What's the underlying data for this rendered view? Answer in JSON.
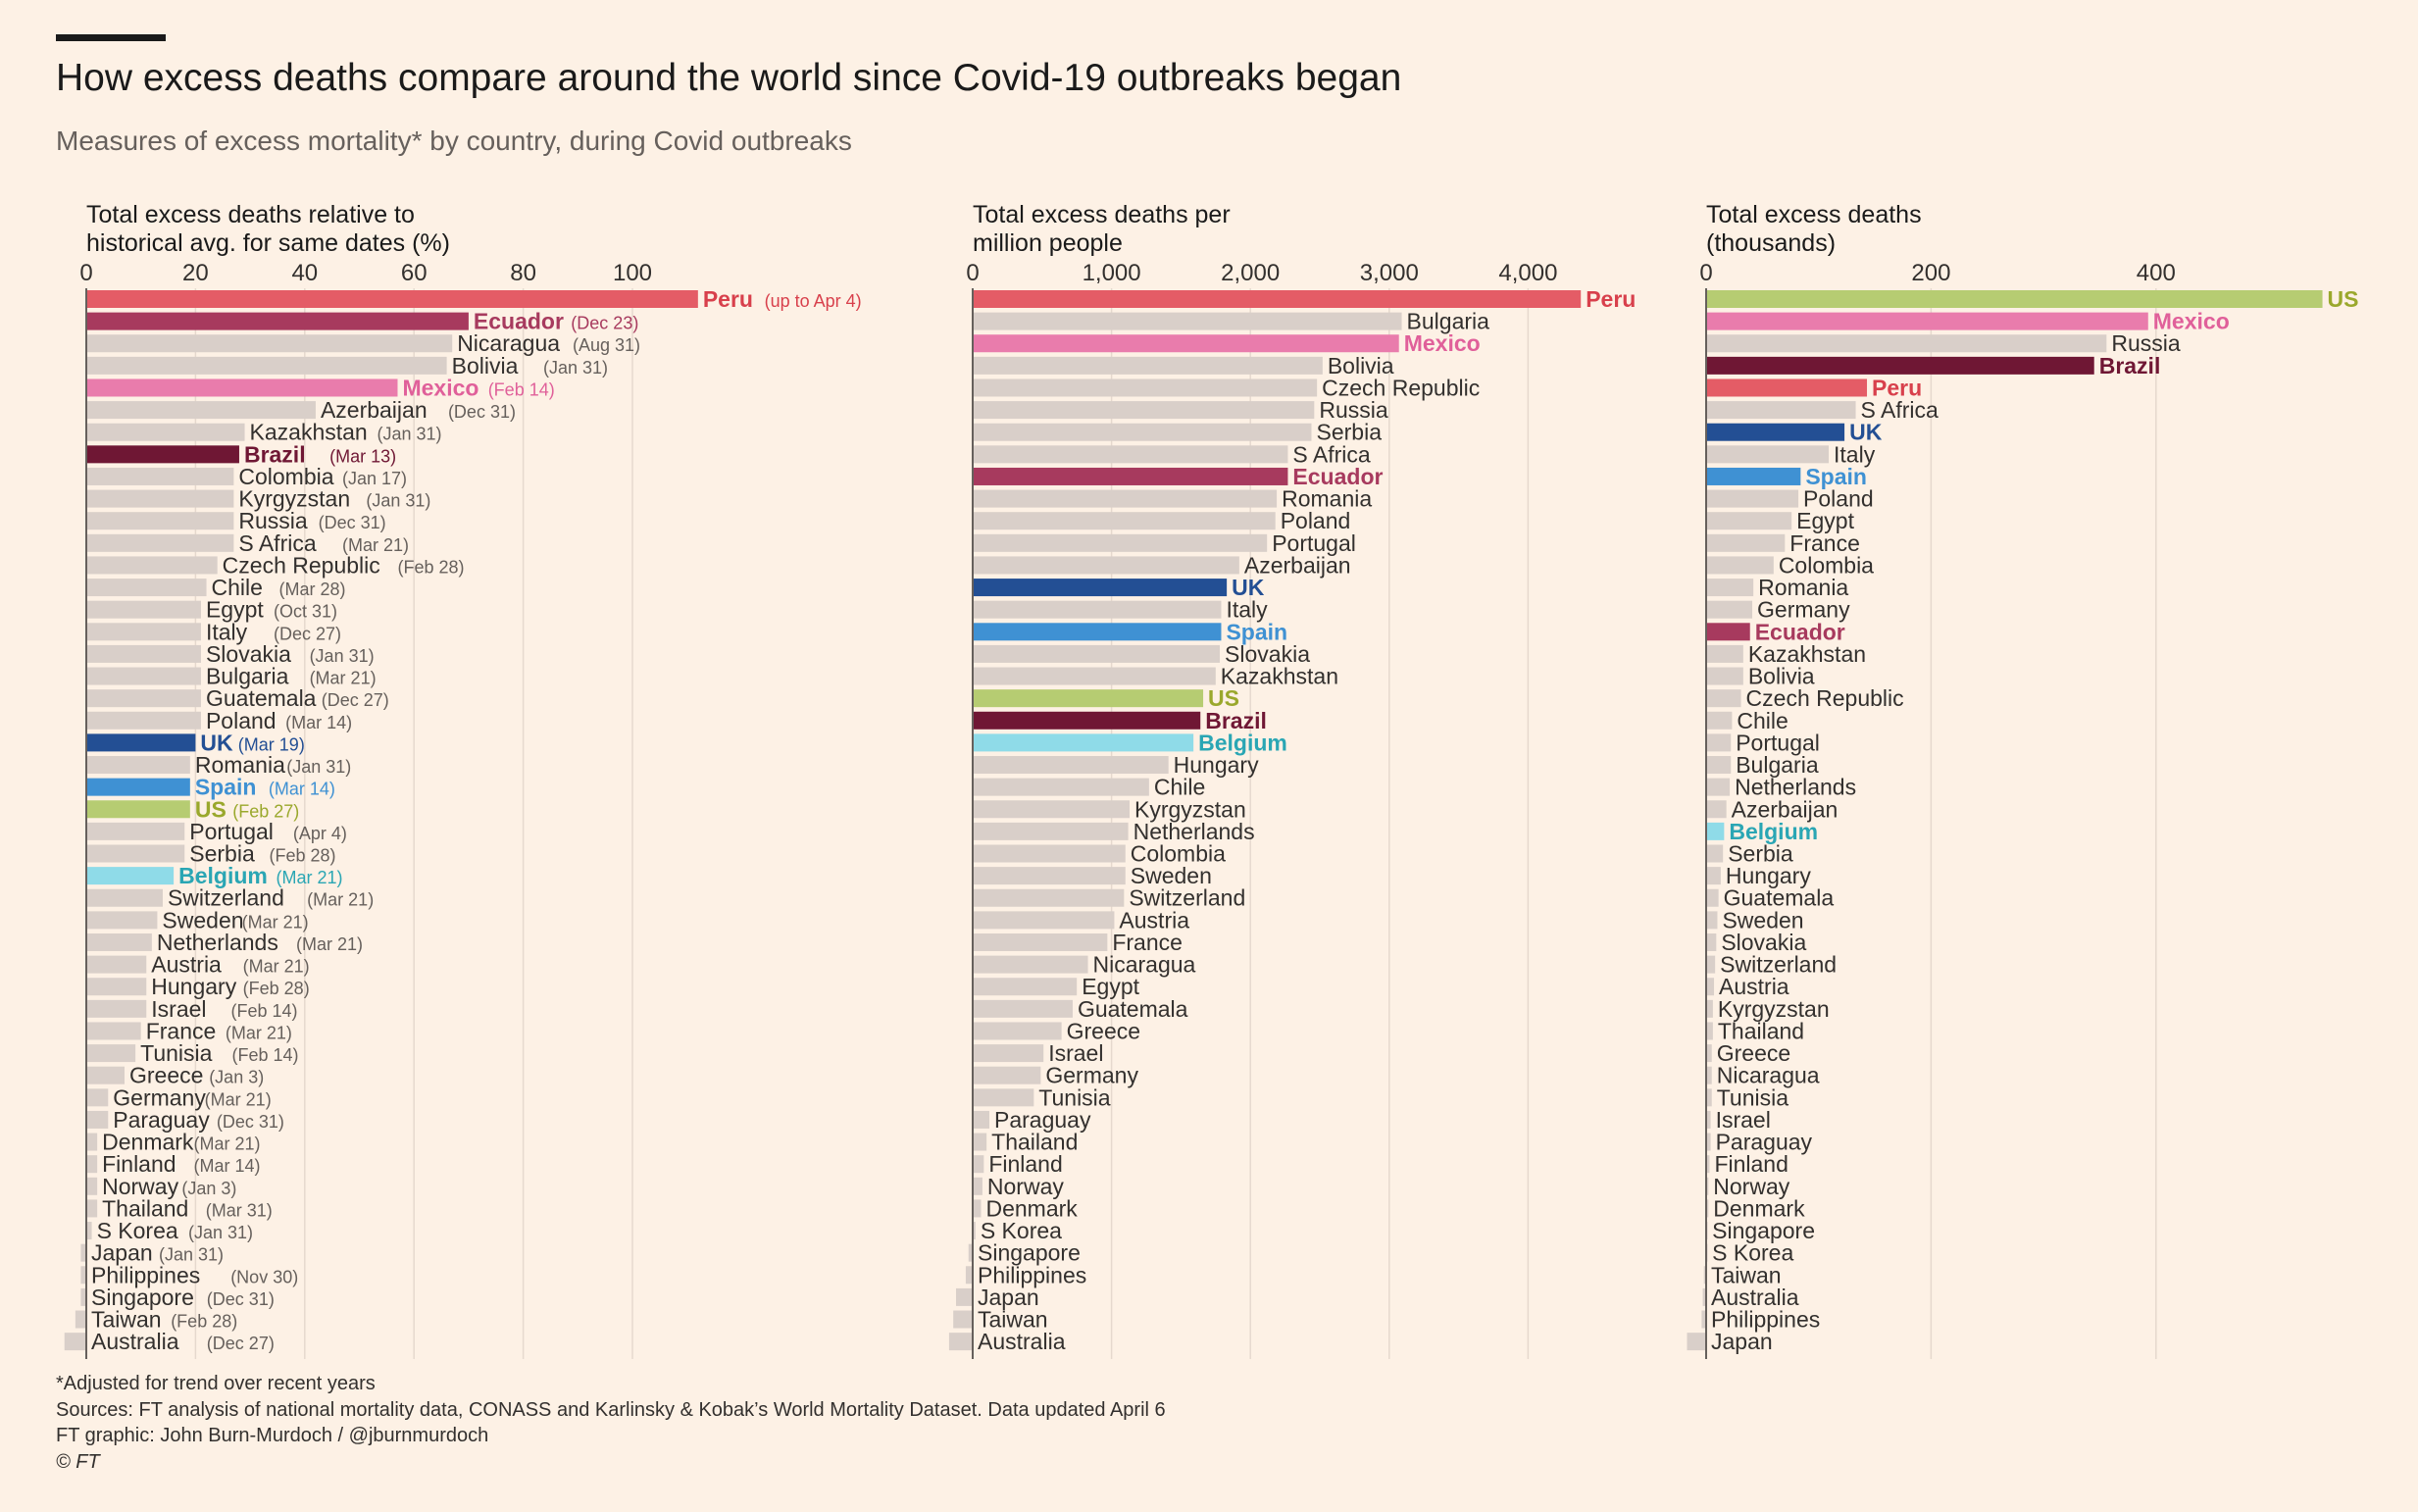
{
  "title": "How excess deaths compare around the world since Covid-19 outbreaks began",
  "subtitle": "Measures of excess mortality* by country, during Covid outbreaks",
  "footnote": "*Adjusted for trend over recent years",
  "sources": "Sources: FT analysis of national mortality data, CONASS and Karlinsky & Kobak’s World Mortality Dataset. Data updated April 6",
  "credit": "FT graphic: John Burn-Murdoch / @jburnmurdoch",
  "copyright": "© FT",
  "colors": {
    "background": "#fdf1e5",
    "neutral_bar": "#d9cfc9",
    "Peru": "#e45c66",
    "Ecuador": "#a73a5e",
    "Mexico": "#e97cac",
    "Brazil": "#6f1734",
    "UK": "#234f94",
    "Spain": "#3f91d3",
    "US": "#b6cc72",
    "Belgium": "#8fdbe8"
  },
  "label_colors": {
    "Peru": "#d8404c",
    "Ecuador": "#a73a5e",
    "Mexico": "#e0609a",
    "Brazil": "#6f1734",
    "UK": "#234f94",
    "Spain": "#3f91d3",
    "US": "#9aa82c",
    "Belgium": "#2aa6b4"
  },
  "chart_data": [
    {
      "type": "bar",
      "orientation": "horizontal",
      "title_lines": [
        "Total excess deaths relative to",
        "historical avg. for same dates (%)"
      ],
      "xlim": [
        0,
        120
      ],
      "ticks": [
        0,
        20,
        40,
        60,
        80,
        100
      ],
      "tick_labels": [
        "0",
        "20",
        "40",
        "60",
        "80",
        "100"
      ],
      "categories": [
        "Peru",
        "Ecuador",
        "Nicaragua",
        "Bolivia",
        "Mexico",
        "Azerbaijan",
        "Kazakhstan",
        "Brazil",
        "Colombia",
        "Kyrgyzstan",
        "Russia",
        "S Africa",
        "Czech Republic",
        "Chile",
        "Egypt",
        "Italy",
        "Slovakia",
        "Bulgaria",
        "Guatemala",
        "Poland",
        "UK",
        "Romania",
        "Spain",
        "US",
        "Portugal",
        "Serbia",
        "Belgium",
        "Switzerland",
        "Sweden",
        "Netherlands",
        "Austria",
        "Hungary",
        "Israel",
        "France",
        "Tunisia",
        "Greece",
        "Germany",
        "Paraguay",
        "Denmark",
        "Finland",
        "Norway",
        "Thailand",
        "S Korea",
        "Japan",
        "Philippines",
        "Singapore",
        "Taiwan",
        "Australia"
      ],
      "dates": [
        "(up to Apr 4)",
        "(Dec 23)",
        "(Aug 31)",
        "(Jan 31)",
        "(Feb 14)",
        "(Dec 31)",
        "(Jan 31)",
        "(Mar 13)",
        "(Jan 17)",
        "(Jan 31)",
        "(Dec 31)",
        "(Mar 21)",
        "(Feb 28)",
        "(Mar 28)",
        "(Oct 31)",
        "(Dec 27)",
        "(Jan 31)",
        "(Mar 21)",
        "(Dec 27)",
        "(Mar 14)",
        "(Mar 19)",
        "(Jan 31)",
        "(Mar 14)",
        "(Feb 27)",
        "(Apr 4)",
        "(Feb 28)",
        "(Mar 21)",
        "(Mar 21)",
        "(Mar 21)",
        "(Mar 21)",
        "(Mar 21)",
        "(Feb 28)",
        "(Feb 14)",
        "(Mar 21)",
        "(Feb 14)",
        "(Jan 3)",
        "(Mar 21)",
        "(Dec 31)",
        "(Mar 21)",
        "(Mar 14)",
        "(Jan 3)",
        "(Mar 31)",
        "(Jan 31)",
        "(Jan 31)",
        "(Nov 30)",
        "(Dec 31)",
        "(Feb 28)",
        "(Dec 27)"
      ],
      "values": [
        112,
        70,
        67,
        66,
        57,
        42,
        29,
        28,
        27,
        27,
        27,
        27,
        24,
        22,
        21,
        21,
        21,
        21,
        21,
        21,
        20,
        19,
        19,
        19,
        18,
        18,
        16,
        14,
        13,
        12,
        11,
        11,
        11,
        10,
        9,
        7,
        4,
        4,
        2,
        2,
        2,
        2,
        1,
        -1,
        -1,
        -1,
        -2,
        -4
      ]
    },
    {
      "type": "bar",
      "orientation": "horizontal",
      "title_lines": [
        "Total excess deaths per",
        "million people"
      ],
      "xlim": [
        0,
        4800
      ],
      "ticks": [
        0,
        1000,
        2000,
        3000,
        4000
      ],
      "tick_labels": [
        "0",
        "1,000",
        "2,000",
        "3,000",
        "4,000"
      ],
      "categories": [
        "Peru",
        "Bulgaria",
        "Mexico",
        "Bolivia",
        "Czech Republic",
        "Russia",
        "Serbia",
        "S Africa",
        "Ecuador",
        "Romania",
        "Poland",
        "Portugal",
        "Azerbaijan",
        "UK",
        "Italy",
        "Spain",
        "Slovakia",
        "Kazakhstan",
        "US",
        "Brazil",
        "Belgium",
        "Hungary",
        "Chile",
        "Kyrgyzstan",
        "Netherlands",
        "Colombia",
        "Sweden",
        "Switzerland",
        "Austria",
        "France",
        "Nicaragua",
        "Egypt",
        "Guatemala",
        "Greece",
        "Israel",
        "Germany",
        "Tunisia",
        "Paraguay",
        "Thailand",
        "Finland",
        "Norway",
        "Denmark",
        "S Korea",
        "Singapore",
        "Philippines",
        "Japan",
        "Taiwan",
        "Australia"
      ],
      "values": [
        4380,
        3090,
        3070,
        2520,
        2480,
        2460,
        2440,
        2270,
        2270,
        2190,
        2180,
        2120,
        1920,
        1830,
        1790,
        1790,
        1780,
        1750,
        1660,
        1640,
        1590,
        1410,
        1270,
        1130,
        1120,
        1100,
        1100,
        1090,
        1020,
        970,
        830,
        750,
        720,
        640,
        510,
        490,
        440,
        120,
        100,
        80,
        70,
        60,
        20,
        -30,
        -50,
        -120,
        -140,
        -170
      ]
    },
    {
      "type": "bar",
      "orientation": "horizontal",
      "title_lines": [
        "Total excess deaths",
        "(thousands)"
      ],
      "xlim": [
        0,
        550
      ],
      "ticks": [
        0,
        200,
        400
      ],
      "tick_labels": [
        "0",
        "200",
        "400"
      ],
      "categories": [
        "US",
        "Mexico",
        "Russia",
        "Brazil",
        "Peru",
        "S Africa",
        "UK",
        "Italy",
        "Spain",
        "Poland",
        "Egypt",
        "France",
        "Colombia",
        "Romania",
        "Germany",
        "Ecuador",
        "Kazakhstan",
        "Bolivia",
        "Czech Republic",
        "Chile",
        "Portugal",
        "Bulgaria",
        "Netherlands",
        "Azerbaijan",
        "Belgium",
        "Serbia",
        "Hungary",
        "Guatemala",
        "Sweden",
        "Slovakia",
        "Switzerland",
        "Austria",
        "Kyrgyzstan",
        "Thailand",
        "Greece",
        "Nicaragua",
        "Tunisia",
        "Israel",
        "Paraguay",
        "Finland",
        "Norway",
        "Denmark",
        "Singapore",
        "S Korea",
        "Taiwan",
        "Australia",
        "Philippines",
        "Japan"
      ],
      "values": [
        548,
        393,
        356,
        345,
        143,
        133,
        123,
        109,
        84,
        82,
        76,
        70,
        60,
        42,
        41,
        39,
        33,
        33,
        31,
        23,
        22,
        22,
        21,
        18,
        16,
        15,
        13,
        11,
        10,
        9,
        8,
        7,
        6,
        6,
        5,
        5,
        5,
        4,
        4,
        3,
        2,
        2,
        1,
        1,
        -2,
        -3,
        -4,
        -17
      ]
    }
  ]
}
